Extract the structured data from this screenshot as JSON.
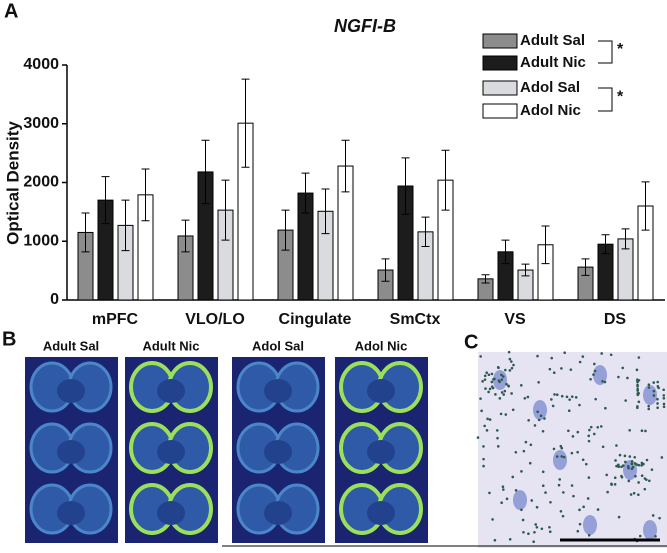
{
  "chart_data": {
    "type": "bar",
    "panel_label": "A",
    "title": "NGFI-B",
    "y_label": "Optical Density",
    "categories": [
      "mPFC",
      "VLO/LO",
      "Cingulate",
      "SmCtx",
      "VS",
      "DS"
    ],
    "series": [
      {
        "name": "Adult Sal",
        "color": "#8c8c8c",
        "values": [
          1150,
          1090,
          1190,
          510,
          360,
          560
        ],
        "errors": [
          330,
          270,
          340,
          190,
          70,
          140
        ]
      },
      {
        "name": "Adult Nic",
        "color": "#1c1c1c",
        "values": [
          1700,
          2180,
          1820,
          1940,
          820,
          950
        ],
        "errors": [
          400,
          540,
          340,
          480,
          200,
          160
        ]
      },
      {
        "name": "Adol Sal",
        "color": "#d9dbde",
        "values": [
          1270,
          1530,
          1510,
          1160,
          510,
          1040
        ],
        "errors": [
          430,
          510,
          380,
          250,
          100,
          170
        ]
      },
      {
        "name": "Adol Nic",
        "color": "#ffffff",
        "values": [
          1790,
          3010,
          2280,
          2040,
          940,
          1600
        ],
        "errors": [
          440,
          750,
          440,
          510,
          320,
          410
        ]
      }
    ],
    "significance": [
      "*",
      "*"
    ],
    "ylim": [
      0,
      4000
    ],
    "yticks": [
      0,
      1000,
      2000,
      3000,
      4000
    ],
    "legend": "top-right"
  },
  "panel_b": {
    "label": "B",
    "columns": [
      "Adult Sal",
      "Adult Nic",
      "Adol Sal",
      "Adol Nic"
    ]
  },
  "panel_c": {
    "label": "C"
  }
}
